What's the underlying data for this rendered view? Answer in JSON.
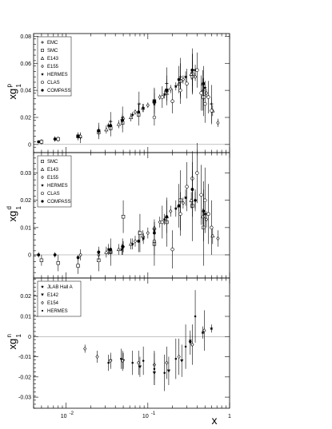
{
  "chart_data": [
    {
      "type": "scatter",
      "panel": "proton",
      "ylabel": "xg",
      "ylabel_sup": "p",
      "ylabel_sub": "1",
      "xscale": "log",
      "xlim": [
        0.004,
        1
      ],
      "ylim": [
        -0.006,
        0.082
      ],
      "yticks": [
        0,
        0.02,
        0.04,
        0.06,
        0.08
      ],
      "ytick_labels": [
        "0",
        "0.02",
        "0.04",
        "0.06",
        "0.08"
      ],
      "legend_placement": "top-left",
      "series": [
        {
          "name": "EMC",
          "marker": "plus",
          "x": [
            0.015,
            0.025,
            0.035,
            0.049,
            0.078,
            0.12,
            0.17,
            0.25,
            0.35,
            0.47,
            0.6
          ],
          "y": [
            0.005,
            0.011,
            0.017,
            0.02,
            0.03,
            0.032,
            0.045,
            0.05,
            0.055,
            0.04,
            0.03
          ],
          "err": [
            0.004,
            0.005,
            0.007,
            0.008,
            0.009,
            0.01,
            0.012,
            0.014,
            0.016,
            0.015,
            0.014
          ]
        },
        {
          "name": "SMC",
          "marker": "open-square",
          "x": [
            0.005,
            0.008,
            0.014,
            0.025,
            0.035,
            0.049,
            0.077,
            0.12,
            0.17,
            0.25,
            0.35,
            0.48
          ],
          "y": [
            0.002,
            0.004,
            0.006,
            0.009,
            0.012,
            0.016,
            0.022,
            0.032,
            0.04,
            0.047,
            0.052,
            0.035
          ],
          "err": [
            0.002,
            0.002,
            0.003,
            0.005,
            0.006,
            0.007,
            0.008,
            0.009,
            0.011,
            0.013,
            0.015,
            0.014
          ]
        },
        {
          "name": "E143",
          "marker": "open-triangle",
          "x": [
            0.031,
            0.044,
            0.062,
            0.087,
            0.12,
            0.17,
            0.24,
            0.34,
            0.47,
            0.62
          ],
          "y": [
            0.011,
            0.015,
            0.02,
            0.027,
            0.032,
            0.038,
            0.045,
            0.052,
            0.045,
            0.025
          ],
          "err": [
            0.003,
            0.003,
            0.003,
            0.003,
            0.003,
            0.003,
            0.003,
            0.004,
            0.004,
            0.004
          ]
        },
        {
          "name": "E155",
          "marker": "open-diamond",
          "x": [
            0.015,
            0.025,
            0.035,
            0.05,
            0.07,
            0.1,
            0.14,
            0.19,
            0.27,
            0.38,
            0.52,
            0.72
          ],
          "y": [
            0.006,
            0.01,
            0.014,
            0.019,
            0.024,
            0.029,
            0.035,
            0.041,
            0.048,
            0.05,
            0.038,
            0.016
          ],
          "err": [
            0.002,
            0.002,
            0.002,
            0.002,
            0.002,
            0.002,
            0.002,
            0.003,
            0.003,
            0.003,
            0.003,
            0.003
          ]
        },
        {
          "name": "HERMES",
          "marker": "filled-star",
          "x": [
            0.033,
            0.048,
            0.065,
            0.088,
            0.12,
            0.16,
            0.22,
            0.29,
            0.38,
            0.5
          ],
          "y": [
            0.014,
            0.018,
            0.022,
            0.027,
            0.03,
            0.037,
            0.043,
            0.05,
            0.055,
            0.042
          ],
          "err": [
            0.002,
            0.002,
            0.002,
            0.003,
            0.003,
            0.003,
            0.003,
            0.004,
            0.004,
            0.005
          ]
        },
        {
          "name": "CLAS",
          "marker": "open-circle",
          "x": [
            0.12,
            0.15,
            0.2,
            0.25,
            0.3,
            0.35,
            0.4,
            0.45,
            0.5,
            0.55,
            0.6
          ],
          "y": [
            0.02,
            0.035,
            0.032,
            0.04,
            0.045,
            0.05,
            0.055,
            0.038,
            0.03,
            0.035,
            0.025
          ],
          "err": [
            0.006,
            0.008,
            0.009,
            0.01,
            0.011,
            0.012,
            0.013,
            0.013,
            0.014,
            0.012,
            0.01
          ]
        },
        {
          "name": "COMPASS",
          "marker": "filled-circle",
          "x": [
            0.0046,
            0.0073,
            0.014,
            0.025,
            0.035,
            0.049,
            0.077,
            0.12,
            0.17,
            0.24,
            0.35,
            0.48
          ],
          "y": [
            0.002,
            0.004,
            0.006,
            0.01,
            0.014,
            0.018,
            0.024,
            0.032,
            0.04,
            0.048,
            0.055,
            0.045
          ],
          "err": [
            0.001,
            0.002,
            0.002,
            0.003,
            0.003,
            0.004,
            0.005,
            0.006,
            0.008,
            0.01,
            0.012,
            0.013
          ]
        }
      ]
    },
    {
      "type": "scatter",
      "panel": "deuteron",
      "ylabel": "xg",
      "ylabel_sup": "d",
      "ylabel_sub": "1",
      "xscale": "log",
      "xlim": [
        0.004,
        1
      ],
      "ylim": [
        -0.0085,
        0.0375
      ],
      "yticks": [
        0,
        0.01,
        0.02,
        0.03
      ],
      "ytick_labels": [
        "0",
        "0.01",
        "0.02",
        "0.03"
      ],
      "legend_placement": "top-left",
      "series": [
        {
          "name": "SMC",
          "marker": "open-square",
          "x": [
            0.005,
            0.008,
            0.014,
            0.025,
            0.035,
            0.05,
            0.08,
            0.12,
            0.17,
            0.25,
            0.35,
            0.48
          ],
          "y": [
            -0.002,
            -0.003,
            -0.004,
            -0.002,
            0.001,
            0.014,
            0.008,
            0.004,
            0.012,
            0.02,
            0.018,
            0.01
          ],
          "err": [
            0.002,
            0.003,
            0.003,
            0.004,
            0.005,
            0.006,
            0.007,
            0.008,
            0.009,
            0.011,
            0.013,
            0.014
          ]
        },
        {
          "name": "E143",
          "marker": "open-triangle",
          "x": [
            0.031,
            0.044,
            0.062,
            0.087,
            0.12,
            0.17,
            0.24,
            0.34,
            0.47,
            0.62
          ],
          "y": [
            0.001,
            0.002,
            0.004,
            0.007,
            0.01,
            0.014,
            0.018,
            0.02,
            0.014,
            0.007
          ],
          "err": [
            0.002,
            0.002,
            0.002,
            0.002,
            0.002,
            0.002,
            0.002,
            0.003,
            0.003,
            0.003
          ]
        },
        {
          "name": "E155",
          "marker": "open-diamond",
          "x": [
            0.015,
            0.025,
            0.035,
            0.05,
            0.07,
            0.1,
            0.14,
            0.19,
            0.27,
            0.38,
            0.52,
            0.72
          ],
          "y": [
            0.0,
            0.0,
            0.001,
            0.003,
            0.005,
            0.008,
            0.012,
            0.016,
            0.019,
            0.02,
            0.013,
            0.006
          ],
          "err": [
            0.002,
            0.002,
            0.002,
            0.002,
            0.002,
            0.002,
            0.002,
            0.002,
            0.002,
            0.003,
            0.003,
            0.003
          ]
        },
        {
          "name": "HERMES",
          "marker": "filled-star",
          "x": [
            0.033,
            0.048,
            0.065,
            0.088,
            0.12,
            0.16,
            0.22,
            0.29,
            0.38,
            0.5
          ],
          "y": [
            0.002,
            0.002,
            0.004,
            0.006,
            0.009,
            0.013,
            0.017,
            0.021,
            0.02,
            0.015
          ],
          "err": [
            0.002,
            0.002,
            0.002,
            0.002,
            0.002,
            0.002,
            0.003,
            0.003,
            0.004,
            0.004
          ]
        },
        {
          "name": "CLAS",
          "marker": "open-circle",
          "x": [
            0.12,
            0.15,
            0.2,
            0.25,
            0.3,
            0.35,
            0.4,
            0.45,
            0.5,
            0.55,
            0.6
          ],
          "y": [
            0.005,
            0.012,
            0.002,
            0.015,
            0.025,
            0.028,
            0.03,
            0.022,
            0.02,
            0.015,
            0.01
          ],
          "err": [
            0.005,
            0.006,
            0.007,
            0.008,
            0.009,
            0.01,
            0.011,
            0.011,
            0.012,
            0.011,
            0.01
          ]
        },
        {
          "name": "COMPASS",
          "marker": "filled-circle",
          "x": [
            0.0046,
            0.0073,
            0.014,
            0.025,
            0.035,
            0.049,
            0.077,
            0.12,
            0.17,
            0.24,
            0.35,
            0.48
          ],
          "y": [
            0.0,
            0.0,
            -0.001,
            0.001,
            0.002,
            0.003,
            0.005,
            0.008,
            0.014,
            0.018,
            0.024,
            0.016
          ],
          "err": [
            0.001,
            0.001,
            0.001,
            0.002,
            0.002,
            0.003,
            0.004,
            0.005,
            0.006,
            0.008,
            0.01,
            0.011
          ]
        }
      ]
    },
    {
      "type": "scatter",
      "panel": "neutron",
      "ylabel": "xg",
      "ylabel_sup": "n",
      "ylabel_sub": "1",
      "xlabel": "x",
      "xscale": "log",
      "xlim": [
        0.004,
        1
      ],
      "ylim": [
        -0.0355,
        0.029
      ],
      "yticks": [
        -0.03,
        -0.02,
        -0.01,
        0,
        0.01,
        0.02
      ],
      "ytick_labels": [
        "-0.03",
        "-0.02",
        "-0.01",
        "0",
        "0.01",
        "0.02"
      ],
      "xticks": [
        0.01,
        0.1,
        1
      ],
      "xtick_labels": [
        "10",
        "10",
        "1"
      ],
      "xtick_exps": [
        "-2",
        "-1",
        ""
      ],
      "legend_placement": "top-left",
      "series": [
        {
          "name": "JLAB Hall A",
          "marker": "filled-star",
          "x": [
            0.33,
            0.47,
            0.6
          ],
          "y": [
            -0.002,
            0.002,
            0.004
          ],
          "err": [
            0.003,
            0.003,
            0.002
          ]
        },
        {
          "name": "E142",
          "marker": "filled-triangle-down",
          "x": [
            0.035,
            0.05,
            0.08,
            0.12,
            0.18,
            0.26,
            0.33
          ],
          "y": [
            -0.012,
            -0.012,
            -0.015,
            -0.018,
            -0.017,
            -0.012,
            -0.003
          ],
          "err": [
            0.003,
            0.004,
            0.005,
            0.006,
            0.007,
            0.008,
            0.006
          ]
        },
        {
          "name": "E154",
          "marker": "open-diamond",
          "x": [
            0.017,
            0.024,
            0.035,
            0.049,
            0.077,
            0.12,
            0.17,
            0.24,
            0.35,
            0.49
          ],
          "y": [
            -0.006,
            -0.01,
            -0.012,
            -0.012,
            -0.013,
            -0.014,
            -0.013,
            -0.01,
            -0.004,
            0.003
          ],
          "err": [
            0.002,
            0.003,
            0.004,
            0.005,
            0.006,
            0.007,
            0.008,
            0.009,
            0.01,
            0.01
          ]
        },
        {
          "name": "HERMES",
          "marker": "filled-circle-small",
          "x": [
            0.033,
            0.047,
            0.065,
            0.088,
            0.12,
            0.16,
            0.22,
            0.29,
            0.38
          ],
          "y": [
            -0.013,
            -0.011,
            -0.013,
            -0.012,
            -0.016,
            -0.018,
            -0.011,
            -0.005,
            0.01
          ],
          "err": [
            0.004,
            0.005,
            0.006,
            0.007,
            0.008,
            0.009,
            0.01,
            0.011,
            0.013
          ]
        }
      ]
    }
  ]
}
